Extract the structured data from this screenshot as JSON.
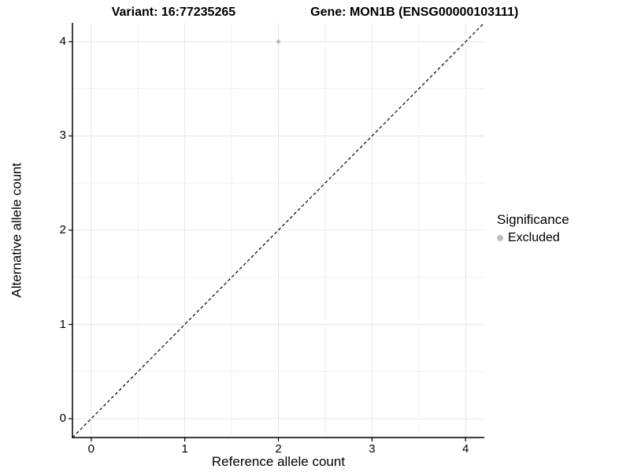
{
  "header": {
    "variant_title": "Variant: 16:77235265",
    "gene_title": "Gene: MON1B (ENSG00000103111)"
  },
  "chart_data": {
    "type": "scatter",
    "title": "Variant: 16:77235265 | Gene: MON1B (ENSG00000103111)",
    "xlabel": "Reference allele count",
    "ylabel": "Alternative allele count",
    "xlim": [
      -0.2,
      4.2
    ],
    "ylim": [
      -0.2,
      4.2
    ],
    "xticks": [
      0,
      1,
      2,
      3,
      4
    ],
    "yticks": [
      0,
      1,
      2,
      3,
      4
    ],
    "minor_ticks_step": 0.5,
    "grid": true,
    "legend_position": "right",
    "identity_line": {
      "slope": 1,
      "intercept": 0,
      "style": "dashed",
      "color": "#000000"
    },
    "series": [
      {
        "name": "Excluded",
        "marker": "circle",
        "color": "#bebebe",
        "points": [
          {
            "x": 2,
            "y": 4
          }
        ]
      }
    ],
    "legend": {
      "title": "Significance",
      "items": [
        {
          "label": "Excluded",
          "color": "#bebebe",
          "marker": "circle"
        }
      ]
    },
    "colors": {
      "background": "#ffffff",
      "grid_major": "#e8e8e8",
      "grid_minor": "#f0f0f0",
      "axis": "#000000",
      "text": "#000000"
    }
  }
}
